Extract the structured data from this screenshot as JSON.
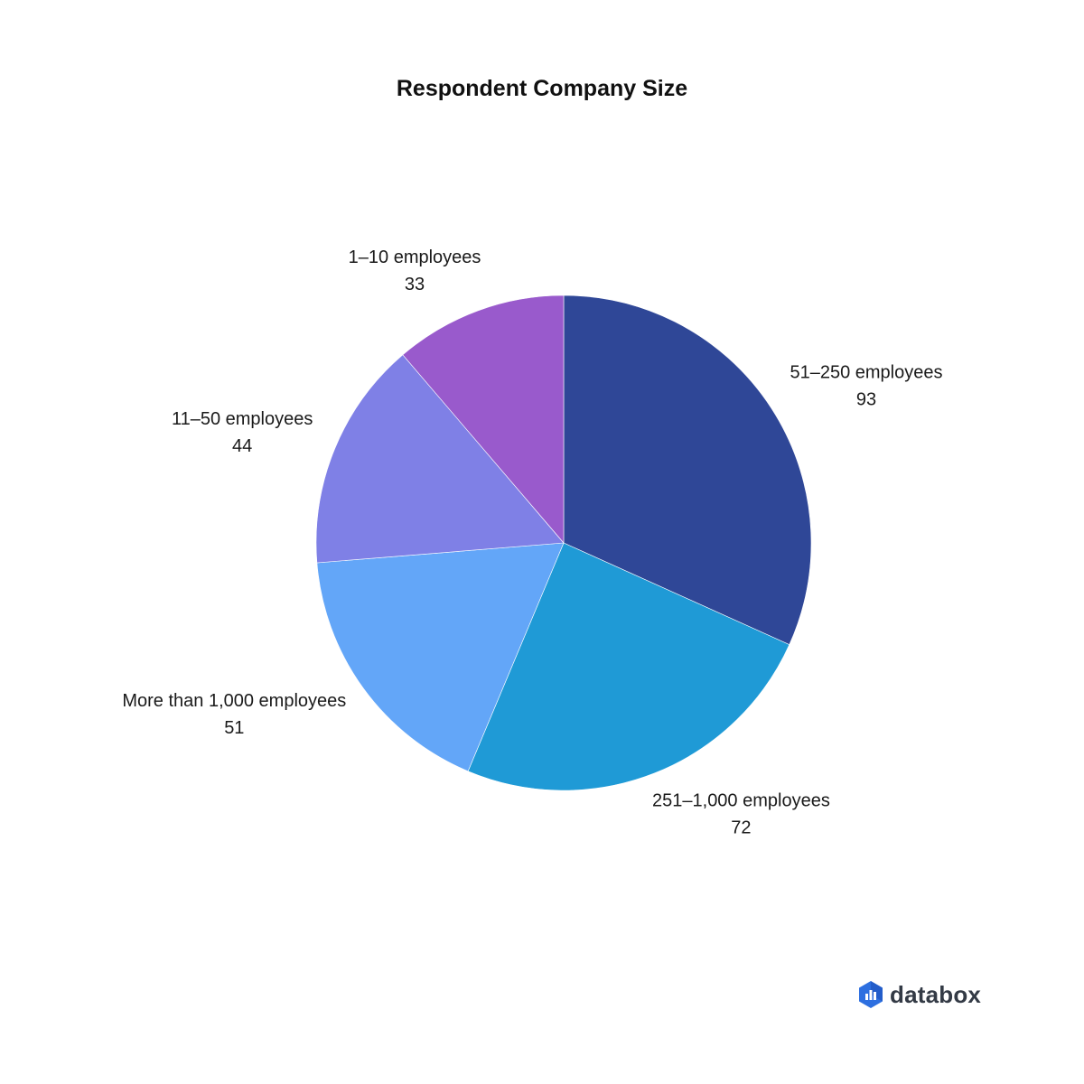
{
  "chart_data": {
    "type": "pie",
    "title": "Respondent Company Size",
    "categories": [
      "51–250 employees",
      "251–1,000 employees",
      "More than 1,000 employees",
      "11–50 employees",
      "1–10 employees"
    ],
    "values": [
      93,
      72,
      51,
      44,
      33
    ],
    "colors": [
      "#2f4797",
      "#1f9ad6",
      "#63a6f8",
      "#7f80e6",
      "#995acc"
    ],
    "start_angle": "12 o'clock",
    "direction": "clockwise"
  },
  "brand": {
    "name": "databox",
    "icon": "databox-logo-icon",
    "icon_color": "#2d6fe0"
  }
}
